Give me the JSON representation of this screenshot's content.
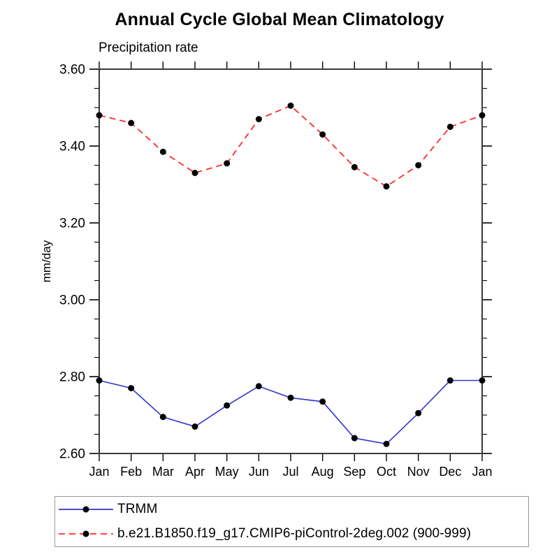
{
  "header": {
    "title": "Annual Cycle Global Mean Climatology",
    "subtitle": "Precipitation rate"
  },
  "chart_data": {
    "type": "line",
    "categories": [
      "Jan",
      "Feb",
      "Mar",
      "Apr",
      "May",
      "Jun",
      "Jul",
      "Aug",
      "Sep",
      "Oct",
      "Nov",
      "Dec",
      "Jan"
    ],
    "ylabel": "mm/day",
    "ylim": [
      2.6,
      3.6
    ],
    "ytick_labels": [
      "2.60",
      "2.80",
      "3.00",
      "3.20",
      "3.40",
      "3.60"
    ],
    "ytick_step": 0.2,
    "ytick_minor_step": 0.05,
    "grid": false,
    "legend_position": "bottom",
    "series": [
      {
        "name": "TRMM",
        "color": "#3333cc",
        "dash": "solid",
        "marker": "circle",
        "marker_color": "#000000",
        "values": [
          2.79,
          2.77,
          2.695,
          2.67,
          2.725,
          2.775,
          2.745,
          2.735,
          2.64,
          2.625,
          2.705,
          2.79,
          2.79
        ]
      },
      {
        "name": "b.e21.B1850.f19_g17.CMIP6-piControl-2deg.002 (900-999)",
        "color": "#ff2a2a",
        "dash": "dashed",
        "marker": "circle",
        "marker_color": "#000000",
        "values": [
          3.48,
          3.46,
          3.385,
          3.33,
          3.355,
          3.47,
          3.505,
          3.43,
          3.345,
          3.295,
          3.35,
          3.45,
          3.48
        ]
      }
    ],
    "axis_color": "#3a3a3a"
  }
}
